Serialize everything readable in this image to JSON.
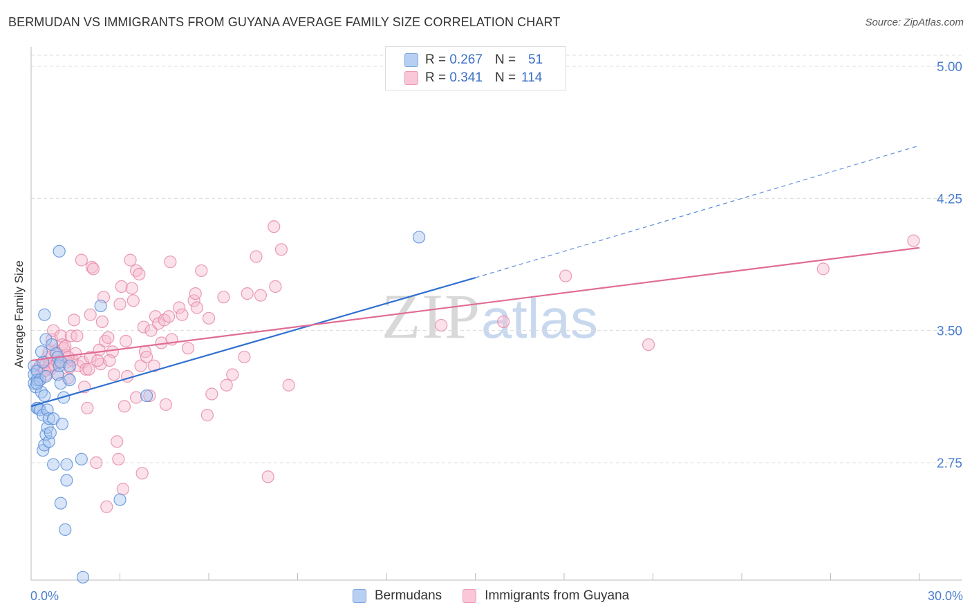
{
  "title": "BERMUDAN VS IMMIGRANTS FROM GUYANA AVERAGE FAMILY SIZE CORRELATION CHART",
  "source": "Source: ZipAtlas.com",
  "watermark": {
    "zip": "ZIP",
    "atlas": "atlas"
  },
  "legend_top": {
    "rows": [
      {
        "r_label": "R =",
        "r_value": "0.267",
        "n_label": "N =",
        "n_value": "51"
      },
      {
        "r_label": "R =",
        "r_value": "0.341",
        "n_label": "N =",
        "n_value": "114"
      }
    ]
  },
  "legend_bottom": [
    "Bermudans",
    "Immigrants from Guyana"
  ],
  "colors": {
    "blue_fill": "#a9c6f0",
    "blue_stroke": "#5b8fd8",
    "blue_line": "#2f6fd0",
    "pink_fill": "#f7bcd0",
    "pink_stroke": "#e589a8",
    "pink_line": "#e06b96",
    "tick": "#4a7fd0",
    "grid": "#dcdcdc"
  },
  "chart_data": {
    "type": "scatter",
    "title": "BERMUDAN VS IMMIGRANTS FROM GUYANA AVERAGE FAMILY SIZE CORRELATION CHART",
    "xlabel": "",
    "ylabel": "Average Family Size",
    "xlim": [
      0,
      30
    ],
    "ylim": [
      2.0,
      5.2
    ],
    "x_tick_labels": [
      "0.0%",
      "30.0%"
    ],
    "y_ticks": [
      2.75,
      3.5,
      4.25,
      5.0
    ],
    "y_tick_labels": [
      "2.75",
      "3.50",
      "4.25",
      "5.00"
    ],
    "x_minor_ticks": [
      0,
      3,
      6,
      9,
      12,
      15,
      18,
      21,
      24,
      27,
      30
    ],
    "series": [
      {
        "name": "Bermudans",
        "r": 0.267,
        "n": 51,
        "trend": {
          "x0": 0,
          "y0": 3.07,
          "x1": 15,
          "y1": 3.8,
          "dash_to_x": 30,
          "dash_to_y": 4.55
        },
        "points": [
          [
            0.1,
            3.3
          ],
          [
            0.1,
            3.25
          ],
          [
            0.1,
            3.2
          ],
          [
            0.15,
            3.18
          ],
          [
            0.2,
            3.22
          ],
          [
            0.2,
            3.27
          ],
          [
            0.2,
            3.06
          ],
          [
            0.25,
            3.06
          ],
          [
            0.3,
            3.22
          ],
          [
            0.3,
            3.05
          ],
          [
            0.35,
            3.38
          ],
          [
            0.35,
            3.15
          ],
          [
            0.4,
            3.32
          ],
          [
            0.4,
            3.02
          ],
          [
            0.4,
            2.82
          ],
          [
            0.45,
            3.59
          ],
          [
            0.45,
            3.13
          ],
          [
            0.45,
            2.85
          ],
          [
            0.5,
            3.45
          ],
          [
            0.5,
            3.24
          ],
          [
            0.5,
            2.91
          ],
          [
            0.55,
            3.05
          ],
          [
            0.55,
            2.95
          ],
          [
            0.6,
            3.0
          ],
          [
            0.6,
            2.87
          ],
          [
            0.65,
            2.92
          ],
          [
            0.7,
            3.42
          ],
          [
            0.75,
            2.74
          ],
          [
            0.75,
            3.0
          ],
          [
            0.85,
            3.37
          ],
          [
            0.9,
            3.35
          ],
          [
            0.9,
            3.25
          ],
          [
            0.95,
            3.3
          ],
          [
            1.0,
            3.32
          ],
          [
            1.0,
            3.2
          ],
          [
            0.95,
            3.95
          ],
          [
            1.0,
            2.52
          ],
          [
            1.05,
            2.97
          ],
          [
            1.1,
            3.12
          ],
          [
            1.15,
            2.37
          ],
          [
            1.2,
            2.74
          ],
          [
            1.2,
            2.65
          ],
          [
            1.3,
            3.3
          ],
          [
            1.3,
            3.22
          ],
          [
            1.7,
            2.77
          ],
          [
            1.75,
            2.1
          ],
          [
            2.35,
            3.64
          ],
          [
            3.0,
            2.54
          ],
          [
            3.9,
            3.13
          ],
          [
            13.1,
            4.03
          ],
          [
            0.2,
            3.2
          ]
        ]
      },
      {
        "name": "Immigrants from Guyana",
        "r": 0.341,
        "n": 114,
        "trend": {
          "x0": 0,
          "y0": 3.33,
          "x1": 30,
          "y1": 3.97
        },
        "points": [
          [
            0.2,
            3.28
          ],
          [
            0.3,
            3.22
          ],
          [
            0.3,
            3.3
          ],
          [
            0.4,
            3.27
          ],
          [
            0.5,
            3.25
          ],
          [
            0.5,
            3.32
          ],
          [
            0.55,
            3.35
          ],
          [
            0.6,
            3.3
          ],
          [
            0.65,
            3.28
          ],
          [
            0.7,
            3.45
          ],
          [
            0.75,
            3.5
          ],
          [
            0.8,
            3.38
          ],
          [
            0.8,
            3.3
          ],
          [
            0.85,
            3.37
          ],
          [
            0.9,
            3.25
          ],
          [
            1.0,
            3.33
          ],
          [
            1.0,
            3.47
          ],
          [
            1.05,
            3.42
          ],
          [
            1.1,
            3.4
          ],
          [
            1.15,
            3.36
          ],
          [
            1.2,
            3.32
          ],
          [
            1.25,
            3.23
          ],
          [
            1.3,
            3.29
          ],
          [
            1.35,
            3.47
          ],
          [
            1.4,
            3.33
          ],
          [
            1.45,
            3.56
          ],
          [
            1.5,
            3.37
          ],
          [
            1.6,
            3.3
          ],
          [
            1.7,
            3.9
          ],
          [
            1.75,
            3.32
          ],
          [
            1.8,
            3.18
          ],
          [
            1.85,
            3.28
          ],
          [
            1.9,
            3.06
          ],
          [
            2.0,
            3.35
          ],
          [
            2.0,
            3.59
          ],
          [
            2.05,
            3.86
          ],
          [
            2.1,
            3.85
          ],
          [
            2.2,
            2.75
          ],
          [
            2.3,
            3.39
          ],
          [
            2.35,
            3.31
          ],
          [
            2.4,
            3.55
          ],
          [
            2.45,
            3.69
          ],
          [
            2.5,
            3.44
          ],
          [
            2.55,
            2.5
          ],
          [
            2.6,
            3.46
          ],
          [
            2.75,
            3.38
          ],
          [
            2.8,
            3.25
          ],
          [
            2.9,
            2.87
          ],
          [
            2.95,
            2.77
          ],
          [
            3.0,
            3.65
          ],
          [
            3.05,
            3.75
          ],
          [
            3.1,
            2.6
          ],
          [
            3.15,
            3.07
          ],
          [
            3.2,
            3.44
          ],
          [
            3.25,
            3.24
          ],
          [
            3.35,
            3.9
          ],
          [
            3.4,
            3.74
          ],
          [
            3.45,
            3.67
          ],
          [
            3.55,
            3.84
          ],
          [
            3.65,
            3.82
          ],
          [
            3.7,
            3.3
          ],
          [
            3.75,
            2.69
          ],
          [
            3.8,
            3.52
          ],
          [
            3.85,
            3.38
          ],
          [
            3.9,
            3.35
          ],
          [
            4.0,
            3.13
          ],
          [
            4.05,
            3.5
          ],
          [
            4.15,
            3.3
          ],
          [
            4.2,
            3.58
          ],
          [
            4.3,
            3.54
          ],
          [
            4.5,
            3.56
          ],
          [
            4.55,
            3.08
          ],
          [
            4.65,
            3.58
          ],
          [
            4.7,
            3.89
          ],
          [
            4.75,
            3.45
          ],
          [
            5.0,
            3.63
          ],
          [
            5.1,
            3.59
          ],
          [
            5.3,
            3.4
          ],
          [
            5.5,
            3.67
          ],
          [
            5.55,
            3.71
          ],
          [
            5.6,
            3.63
          ],
          [
            5.75,
            3.84
          ],
          [
            5.95,
            3.02
          ],
          [
            6.0,
            3.57
          ],
          [
            6.1,
            3.14
          ],
          [
            6.5,
            3.69
          ],
          [
            6.6,
            3.19
          ],
          [
            6.8,
            3.25
          ],
          [
            7.2,
            3.35
          ],
          [
            7.3,
            3.71
          ],
          [
            7.6,
            3.92
          ],
          [
            7.75,
            3.7
          ],
          [
            8.0,
            2.67
          ],
          [
            8.2,
            4.09
          ],
          [
            8.25,
            3.75
          ],
          [
            8.45,
            3.96
          ],
          [
            8.7,
            3.19
          ],
          [
            13.85,
            3.53
          ],
          [
            15.95,
            3.55
          ],
          [
            18.05,
            3.81
          ],
          [
            20.85,
            3.42
          ],
          [
            26.75,
            3.85
          ],
          [
            29.8,
            4.01
          ],
          [
            0.9,
            3.32
          ],
          [
            1.15,
            3.41
          ],
          [
            1.55,
            3.47
          ],
          [
            2.65,
            3.33
          ],
          [
            3.55,
            3.12
          ],
          [
            1.95,
            3.28
          ],
          [
            0.45,
            3.27
          ],
          [
            0.6,
            3.38
          ],
          [
            1.25,
            3.35
          ],
          [
            2.25,
            3.33
          ],
          [
            4.4,
            3.43
          ]
        ]
      }
    ]
  }
}
